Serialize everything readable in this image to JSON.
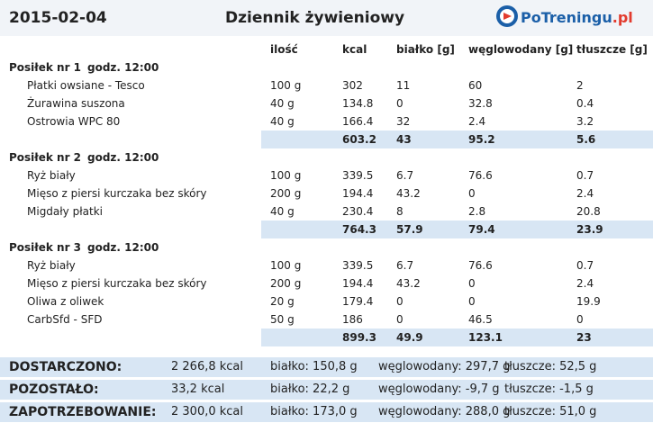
{
  "header": {
    "date": "2015-02-04",
    "title": "Dziennik żywieniowy",
    "logo": {
      "name": "PoTreningu",
      "tld": ".pl"
    }
  },
  "columns": [
    "ilość",
    "kcal",
    "białko [g]",
    "węglowodany [g]",
    "tłuszcze [g]"
  ],
  "meals": [
    {
      "label": "Posiłek nr 1",
      "time": "godz. 12:00",
      "items": [
        [
          "Płatki owsiane - Tesco",
          "100 g",
          "302",
          "11",
          "60",
          "2"
        ],
        [
          "Żurawina suszona",
          "40 g",
          "134.8",
          "0",
          "32.8",
          "0.4"
        ],
        [
          "Ostrowia WPC 80",
          "40 g",
          "166.4",
          "32",
          "2.4",
          "3.2"
        ]
      ],
      "total": [
        "603.2",
        "43",
        "95.2",
        "5.6"
      ]
    },
    {
      "label": "Posiłek nr 2",
      "time": "godz. 12:00",
      "items": [
        [
          "Ryż biały",
          "100 g",
          "339.5",
          "6.7",
          "76.6",
          "0.7"
        ],
        [
          "Mięso z piersi kurczaka bez skóry",
          "200 g",
          "194.4",
          "43.2",
          "0",
          "2.4"
        ],
        [
          "Migdały płatki",
          "40 g",
          "230.4",
          "8",
          "2.8",
          "20.8"
        ]
      ],
      "total": [
        "764.3",
        "57.9",
        "79.4",
        "23.9"
      ]
    },
    {
      "label": "Posiłek nr 3",
      "time": "godz. 12:00",
      "items": [
        [
          "Ryż biały",
          "100 g",
          "339.5",
          "6.7",
          "76.6",
          "0.7"
        ],
        [
          "Mięso z piersi kurczaka bez skóry",
          "200 g",
          "194.4",
          "43.2",
          "0",
          "2.4"
        ],
        [
          "Oliwa z oliwek",
          "20 g",
          "179.4",
          "0",
          "0",
          "19.9"
        ],
        [
          "CarbSfd - SFD",
          "50 g",
          "186",
          "0",
          "46.5",
          "0"
        ]
      ],
      "total": [
        "899.3",
        "49.9",
        "123.1",
        "23"
      ]
    }
  ],
  "summary": [
    [
      "DOSTARCZONO:",
      "2 266,8 kcal",
      "białko: 150,8 g",
      "węglowodany: 297,7 g",
      "tłuszcze: 52,5 g"
    ],
    [
      "POZOSTAŁO:",
      "33,2 kcal",
      "białko: 22,2 g",
      "węglowodany: -9,7 g",
      "tłuszcze: -1,5 g"
    ],
    [
      "ZAPOTRZEBOWANIE:",
      "2 300,0 kcal",
      "białko: 173,0 g",
      "węglowodany: 288,0 g",
      "tłuszcze: 51,0 g"
    ]
  ]
}
